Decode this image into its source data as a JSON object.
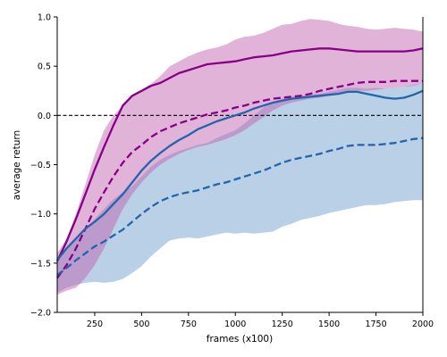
{
  "chart_data": {
    "type": "line",
    "title": "",
    "xlabel": "frames (x100)",
    "ylabel": "average return",
    "xlim": [
      50,
      2000
    ],
    "ylim": [
      -2.0,
      1.0
    ],
    "xticks": [
      250,
      500,
      750,
      1000,
      1250,
      1500,
      1750,
      2000
    ],
    "yticks": [
      -2.0,
      -1.5,
      -1.0,
      -0.5,
      0.0,
      0.5,
      1.0
    ],
    "xtick_labels": [
      "250",
      "500",
      "750",
      "1000",
      "1250",
      "1500",
      "1750",
      "2000"
    ],
    "ytick_labels": [
      "−2.0",
      "−1.5",
      "−1.0",
      "−0.5",
      "0.0",
      "0.5",
      "1.0"
    ],
    "grid": false,
    "reference_line": {
      "y": 0.0,
      "style": "dashed",
      "color": "#000000"
    },
    "bands": [
      {
        "color": "#6d9ccb",
        "opacity": 0.48,
        "x": [
          50,
          100,
          150,
          200,
          250,
          300,
          350,
          400,
          450,
          500,
          550,
          600,
          650,
          700,
          750,
          800,
          850,
          900,
          950,
          1000,
          1050,
          1100,
          1150,
          1200,
          1250,
          1300,
          1350,
          1400,
          1450,
          1500,
          1550,
          1600,
          1650,
          1700,
          1750,
          1800,
          1850,
          1900,
          1950,
          2000
        ],
        "lower": [
          -1.8,
          -1.75,
          -1.72,
          -1.7,
          -1.69,
          -1.7,
          -1.69,
          -1.66,
          -1.6,
          -1.53,
          -1.43,
          -1.35,
          -1.27,
          -1.25,
          -1.24,
          -1.25,
          -1.23,
          -1.21,
          -1.19,
          -1.2,
          -1.19,
          -1.2,
          -1.19,
          -1.18,
          -1.13,
          -1.1,
          -1.06,
          -1.04,
          -1.02,
          -0.99,
          -0.97,
          -0.95,
          -0.93,
          -0.91,
          -0.91,
          -0.9,
          -0.88,
          -0.87,
          -0.86,
          -0.86
        ],
        "upper": [
          -1.45,
          -1.35,
          -1.25,
          -1.15,
          -1.05,
          -0.95,
          -0.85,
          -0.78,
          -0.72,
          -0.62,
          -0.52,
          -0.45,
          -0.4,
          -0.36,
          -0.33,
          -0.3,
          -0.28,
          -0.23,
          -0.19,
          -0.15,
          -0.08,
          0.0,
          0.08,
          0.13,
          0.17,
          0.19,
          0.2,
          0.21,
          0.22,
          0.24,
          0.26,
          0.28,
          0.28,
          0.27,
          0.28,
          0.27,
          0.28,
          0.29,
          0.31,
          0.33
        ]
      },
      {
        "color": "#c160b0",
        "opacity": 0.48,
        "x": [
          50,
          100,
          150,
          200,
          250,
          300,
          350,
          400,
          450,
          500,
          550,
          600,
          650,
          700,
          750,
          800,
          850,
          900,
          950,
          1000,
          1050,
          1100,
          1150,
          1200,
          1250,
          1300,
          1350,
          1400,
          1450,
          1500,
          1550,
          1600,
          1650,
          1700,
          1750,
          1800,
          1850,
          1900,
          1950,
          2000
        ],
        "lower": [
          -1.82,
          -1.78,
          -1.75,
          -1.65,
          -1.52,
          -1.35,
          -1.15,
          -0.95,
          -0.8,
          -0.68,
          -0.58,
          -0.5,
          -0.44,
          -0.39,
          -0.35,
          -0.32,
          -0.3,
          -0.27,
          -0.24,
          -0.2,
          -0.15,
          -0.08,
          -0.02,
          0.05,
          0.1,
          0.13,
          0.15,
          0.17,
          0.18,
          0.2,
          0.22,
          0.24,
          0.25,
          0.25,
          0.26,
          0.27,
          0.28,
          0.29,
          0.3,
          0.33
        ],
        "upper": [
          -1.4,
          -1.25,
          -1.0,
          -0.7,
          -0.4,
          -0.15,
          0.0,
          0.1,
          0.2,
          0.26,
          0.32,
          0.4,
          0.5,
          0.55,
          0.6,
          0.64,
          0.67,
          0.69,
          0.72,
          0.77,
          0.8,
          0.81,
          0.84,
          0.88,
          0.92,
          0.93,
          0.96,
          0.98,
          0.97,
          0.96,
          0.93,
          0.91,
          0.9,
          0.88,
          0.87,
          0.88,
          0.89,
          0.88,
          0.87,
          0.85
        ]
      }
    ],
    "series": [
      {
        "color": "#880088",
        "style": "solid",
        "x": [
          50,
          100,
          150,
          200,
          250,
          300,
          350,
          400,
          450,
          500,
          550,
          600,
          650,
          700,
          750,
          800,
          850,
          900,
          950,
          1000,
          1050,
          1100,
          1150,
          1200,
          1250,
          1300,
          1350,
          1400,
          1450,
          1500,
          1550,
          1600,
          1650,
          1700,
          1750,
          1800,
          1850,
          1900,
          1950,
          2000
        ],
        "y": [
          -1.48,
          -1.28,
          -1.05,
          -0.8,
          -0.55,
          -0.32,
          -0.1,
          0.1,
          0.2,
          0.25,
          0.3,
          0.33,
          0.38,
          0.43,
          0.46,
          0.49,
          0.52,
          0.53,
          0.54,
          0.55,
          0.57,
          0.59,
          0.6,
          0.61,
          0.63,
          0.65,
          0.66,
          0.67,
          0.68,
          0.68,
          0.67,
          0.66,
          0.65,
          0.65,
          0.65,
          0.65,
          0.65,
          0.65,
          0.66,
          0.68
        ]
      },
      {
        "color": "#880088",
        "style": "dashed",
        "x": [
          50,
          100,
          150,
          200,
          250,
          300,
          350,
          400,
          450,
          500,
          550,
          600,
          650,
          700,
          750,
          800,
          850,
          900,
          950,
          1000,
          1050,
          1100,
          1150,
          1200,
          1250,
          1300,
          1350,
          1400,
          1450,
          1500,
          1550,
          1600,
          1650,
          1700,
          1750,
          1800,
          1850,
          1900,
          1950,
          2000
        ],
        "y": [
          -1.65,
          -1.52,
          -1.35,
          -1.15,
          -0.95,
          -0.78,
          -0.62,
          -0.48,
          -0.37,
          -0.3,
          -0.22,
          -0.16,
          -0.12,
          -0.08,
          -0.05,
          -0.02,
          0.01,
          0.03,
          0.05,
          0.08,
          0.1,
          0.13,
          0.15,
          0.17,
          0.18,
          0.19,
          0.2,
          0.22,
          0.25,
          0.27,
          0.29,
          0.31,
          0.33,
          0.34,
          0.34,
          0.34,
          0.35,
          0.35,
          0.35,
          0.35
        ]
      },
      {
        "color": "#2166ac",
        "style": "solid",
        "x": [
          50,
          100,
          150,
          200,
          250,
          300,
          350,
          400,
          450,
          500,
          550,
          600,
          650,
          700,
          750,
          800,
          850,
          900,
          950,
          1000,
          1050,
          1100,
          1150,
          1200,
          1250,
          1300,
          1350,
          1400,
          1450,
          1500,
          1550,
          1600,
          1650,
          1700,
          1750,
          1800,
          1850,
          1900,
          1950,
          2000
        ],
        "y": [
          -1.47,
          -1.35,
          -1.25,
          -1.15,
          -1.08,
          -1.0,
          -0.9,
          -0.8,
          -0.68,
          -0.56,
          -0.46,
          -0.38,
          -0.31,
          -0.25,
          -0.2,
          -0.14,
          -0.1,
          -0.06,
          -0.03,
          0.0,
          0.03,
          0.07,
          0.1,
          0.13,
          0.15,
          0.17,
          0.18,
          0.19,
          0.2,
          0.21,
          0.22,
          0.24,
          0.24,
          0.22,
          0.2,
          0.18,
          0.17,
          0.18,
          0.21,
          0.25
        ]
      },
      {
        "color": "#2166ac",
        "style": "dashed",
        "x": [
          50,
          100,
          150,
          200,
          250,
          300,
          350,
          400,
          450,
          500,
          550,
          600,
          650,
          700,
          750,
          800,
          850,
          900,
          950,
          1000,
          1050,
          1100,
          1150,
          1200,
          1250,
          1300,
          1350,
          1400,
          1450,
          1500,
          1550,
          1600,
          1650,
          1700,
          1750,
          1800,
          1850,
          1900,
          1950,
          2000
        ],
        "y": [
          -1.62,
          -1.55,
          -1.47,
          -1.4,
          -1.33,
          -1.28,
          -1.22,
          -1.16,
          -1.08,
          -1.0,
          -0.93,
          -0.87,
          -0.83,
          -0.8,
          -0.78,
          -0.76,
          -0.73,
          -0.7,
          -0.68,
          -0.65,
          -0.62,
          -0.59,
          -0.56,
          -0.52,
          -0.48,
          -0.45,
          -0.43,
          -0.41,
          -0.39,
          -0.36,
          -0.34,
          -0.31,
          -0.3,
          -0.3,
          -0.3,
          -0.29,
          -0.28,
          -0.26,
          -0.24,
          -0.23
        ]
      }
    ]
  }
}
